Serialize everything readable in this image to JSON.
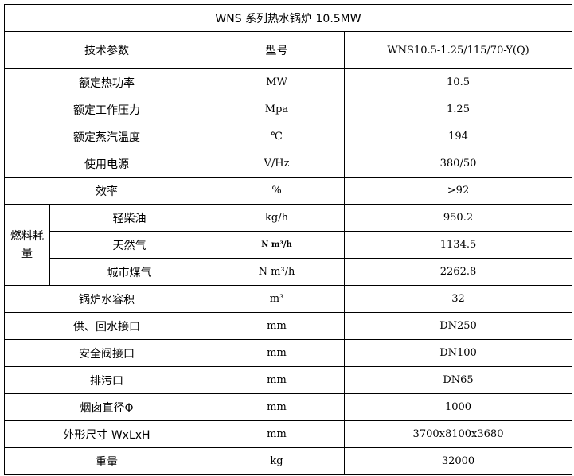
{
  "title": "WNS 系列热水锅炉 10.5MW",
  "header": {
    "param": "技术参数",
    "model_label": "型号",
    "model_value": "WNS10.5-1.25/115/70-Y(Q)"
  },
  "rows_top": [
    {
      "name": "额定热功率",
      "unit": "MW",
      "value": "10.5"
    },
    {
      "name": "额定工作压力",
      "unit": "Mpa",
      "value": "1.25"
    },
    {
      "name": "额定蒸汽温度",
      "unit": "℃",
      "value": "194"
    },
    {
      "name": "使用电源",
      "unit": "V/Hz",
      "value": "380/50"
    },
    {
      "name": "效率",
      "unit": "%",
      "value": ">92"
    }
  ],
  "fuel": {
    "group_label": "燃料耗量",
    "items": [
      {
        "name": "轻柴油",
        "unit": "kg/h",
        "value": "950.2"
      },
      {
        "name": "天然气",
        "unit": "N m³/h",
        "value": "1134.5"
      },
      {
        "name": "城市煤气",
        "unit": "N m³/h",
        "value": "2262.8"
      }
    ]
  },
  "rows_bottom": [
    {
      "name": "锅炉水容积",
      "unit": "m³",
      "value": "32"
    },
    {
      "name": "供、回水接口",
      "unit": "mm",
      "value": "DN250"
    },
    {
      "name": "安全阀接口",
      "unit": "mm",
      "value": "DN100"
    },
    {
      "name": "排污口",
      "unit": "mm",
      "value": "DN65"
    },
    {
      "name": "烟囱直径Φ",
      "unit": "mm",
      "value": "1000"
    },
    {
      "name": "外形尺寸 WxLxH",
      "unit": "mm",
      "value": "3700x8100x3680"
    },
    {
      "name": "重量",
      "unit": "kg",
      "value": "32000"
    }
  ]
}
